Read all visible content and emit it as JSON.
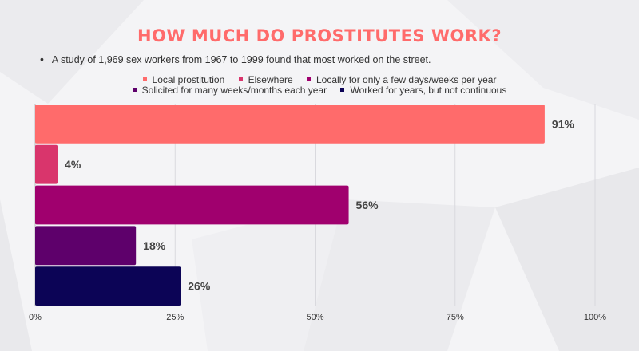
{
  "header": {
    "title": "HOW MUCH DO PROSTITUTES WORK?",
    "bullet": "A study of 1,969 sex workers from 1967 to 1999 found that most worked on the street."
  },
  "colors": {
    "title": "#ff6b6b",
    "text": "#333333",
    "grid": "#d9d9de",
    "background": "#f4f4f6"
  },
  "chart_data": {
    "type": "bar",
    "orientation": "horizontal",
    "categories": [
      "Local prostitution",
      "Elsewhere",
      "Locally for only a few days/weeks per year",
      "Solicited for many weeks/months each year",
      "Worked for years, but not continuous"
    ],
    "values": [
      91,
      4,
      56,
      18,
      26
    ],
    "value_labels": [
      "91%",
      "4%",
      "56%",
      "18%",
      "26%"
    ],
    "colors": [
      "#ff6b6b",
      "#d9356c",
      "#a0006e",
      "#5e006b",
      "#0c0456"
    ],
    "xlim": [
      0,
      100
    ],
    "x_ticks": [
      "0%",
      "25%",
      "50%",
      "75%",
      "100%"
    ],
    "grid": true,
    "legend_position": "top"
  }
}
